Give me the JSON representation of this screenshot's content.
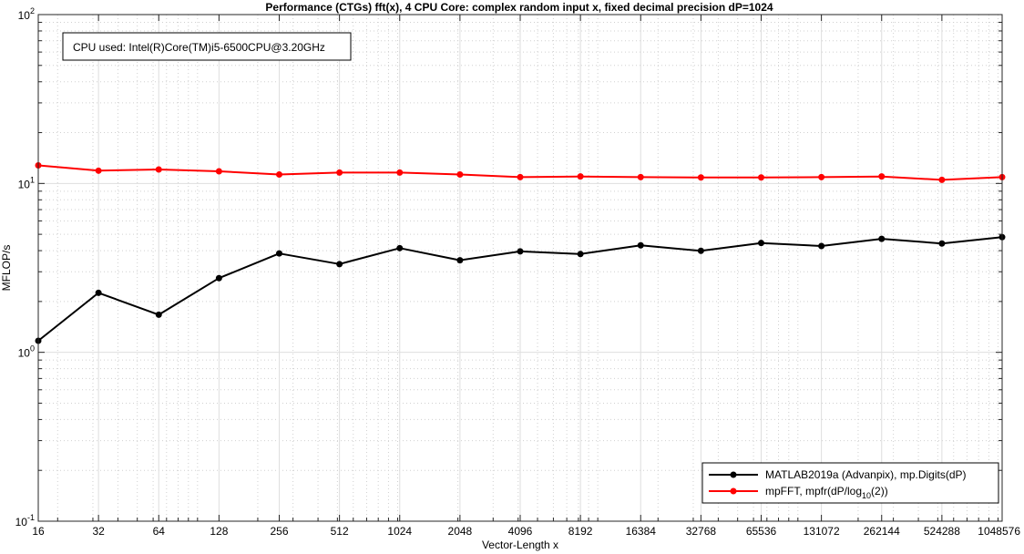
{
  "chart_data": {
    "type": "line",
    "title": "Performance (CTGs) fft(x), 4 CPU Core: complex random input x, fixed decimal precision dP=1024",
    "xlabel": "Vector-Length x",
    "ylabel": "MFLOP/s",
    "x_scale": "log2",
    "y_scale": "log10",
    "grid": true,
    "minor_grid": true,
    "xlim": [
      16,
      1048576
    ],
    "ylim": [
      0.1,
      100
    ],
    "x_ticks": [
      "16",
      "32",
      "64",
      "128",
      "256",
      "512",
      "1024",
      "2048",
      "4096",
      "8192",
      "16384",
      "32768",
      "65536",
      "131072",
      "262144",
      "524288",
      "1048576"
    ],
    "y_ticks": [
      {
        "base": "10",
        "exp": "-1"
      },
      {
        "base": "10",
        "exp": "0"
      },
      {
        "base": "10",
        "exp": "1"
      },
      {
        "base": "10",
        "exp": "2"
      }
    ],
    "x": [
      16,
      32,
      64,
      128,
      256,
      512,
      1024,
      2048,
      4096,
      8192,
      16384,
      32768,
      65536,
      131072,
      262144,
      524288,
      1048576
    ],
    "series": [
      {
        "name": "MATLAB2019a (Advanpix), mp.Digits(dP)",
        "color": "#000000",
        "values": [
          1.17,
          2.25,
          1.67,
          2.75,
          3.85,
          3.33,
          4.14,
          3.51,
          3.96,
          3.82,
          4.3,
          3.99,
          4.44,
          4.26,
          4.7,
          4.41,
          4.81
        ]
      },
      {
        "name": "mpFFT, mpfr(dP/log10(2))",
        "color": "#ff0000",
        "legend": {
          "prefix": "mpFFT, mpfr(dP/log",
          "sub": "10",
          "suffix": "(2))"
        },
        "values": [
          12.8,
          11.9,
          12.1,
          11.8,
          11.3,
          11.6,
          11.6,
          11.3,
          10.9,
          11.0,
          10.9,
          10.85,
          10.85,
          10.9,
          11.0,
          10.5,
          10.9
        ]
      }
    ],
    "legend_position": "bottom-right",
    "annotation": "CPU used: Intel(R)Core(TM)i5-6500CPU@3.20GHz"
  }
}
